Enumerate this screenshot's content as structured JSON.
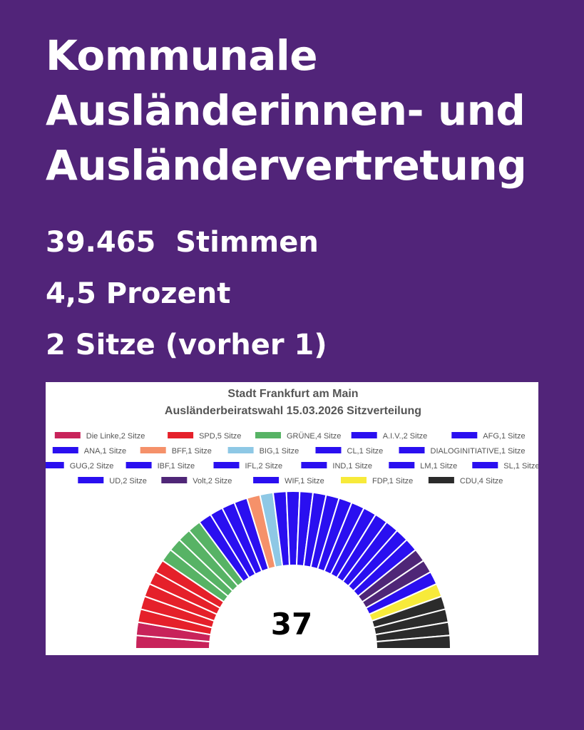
{
  "headline": {
    "line1": "Kommunale",
    "line2": "Ausländerinnen- und",
    "line3": "Ausländervertretung"
  },
  "stats": {
    "votes": "39.465  Stimmen",
    "percent": "4,5 Prozent",
    "seats": "2 Sitze (vorher 1)"
  },
  "chart_data": {
    "type": "parliament",
    "title": "Stadt Frankfurt am Main",
    "subtitle": "Ausländerbeiratswahl 15.03.2026 Sitzverteilung",
    "total_seats": 37,
    "center_label": "37",
    "legend_position": "top",
    "series": [
      {
        "name": "Die Linke",
        "seats": 2,
        "label": "Die Linke,2 Sitze",
        "color": "#c8235a"
      },
      {
        "name": "SPD",
        "seats": 5,
        "label": "SPD,5 Sitze",
        "color": "#e5202a"
      },
      {
        "name": "GRÜNE",
        "seats": 4,
        "label": "GRÜNE,4 Sitze",
        "color": "#57b365"
      },
      {
        "name": "A.I.V.",
        "seats": 2,
        "label": "A.I.V.,2 Sitze",
        "color": "#2a0ff0"
      },
      {
        "name": "AFG",
        "seats": 1,
        "label": "AFG,1 Sitze",
        "color": "#2a0ff0"
      },
      {
        "name": "ANA",
        "seats": 1,
        "label": "ANA,1 Sitze",
        "color": "#2a0ff0"
      },
      {
        "name": "BFF",
        "seats": 1,
        "label": "BFF,1 Sitze",
        "color": "#f5916a"
      },
      {
        "name": "BIG",
        "seats": 1,
        "label": "BIG,1 Sitze",
        "color": "#8ec8e5"
      },
      {
        "name": "CL",
        "seats": 1,
        "label": "CL,1 Sitze",
        "color": "#2a0ff0"
      },
      {
        "name": "DIALOGINITIATIVE",
        "seats": 1,
        "label": "DIALOGINITIATIVE,1 Sitze",
        "color": "#2a0ff0"
      },
      {
        "name": "GUG",
        "seats": 2,
        "label": "GUG,2 Sitze",
        "color": "#2a0ff0"
      },
      {
        "name": "IBF",
        "seats": 1,
        "label": "IBF,1 Sitze",
        "color": "#2a0ff0"
      },
      {
        "name": "IFL",
        "seats": 2,
        "label": "IFL,2 Sitze",
        "color": "#2a0ff0"
      },
      {
        "name": "IND",
        "seats": 1,
        "label": "IND,1 Sitze",
        "color": "#2a0ff0"
      },
      {
        "name": "LM",
        "seats": 1,
        "label": "LM,1 Sitze",
        "color": "#2a0ff0"
      },
      {
        "name": "SL",
        "seats": 1,
        "label": "SL,1 Sitze",
        "color": "#2a0ff0"
      },
      {
        "name": "UD",
        "seats": 2,
        "label": "UD,2 Sitze",
        "color": "#2a0ff0"
      },
      {
        "name": "Volt",
        "seats": 2,
        "label": "Volt,2 Sitze",
        "color": "#4f2677"
      },
      {
        "name": "WIF",
        "seats": 1,
        "label": "WIF,1 Sitze",
        "color": "#2a0ff0"
      },
      {
        "name": "FDP",
        "seats": 1,
        "label": "FDP,1 Sitze",
        "color": "#f7ea3a"
      },
      {
        "name": "CDU",
        "seats": 4,
        "label": "CDU,4 Sitze",
        "color": "#2b2b2b"
      }
    ]
  }
}
